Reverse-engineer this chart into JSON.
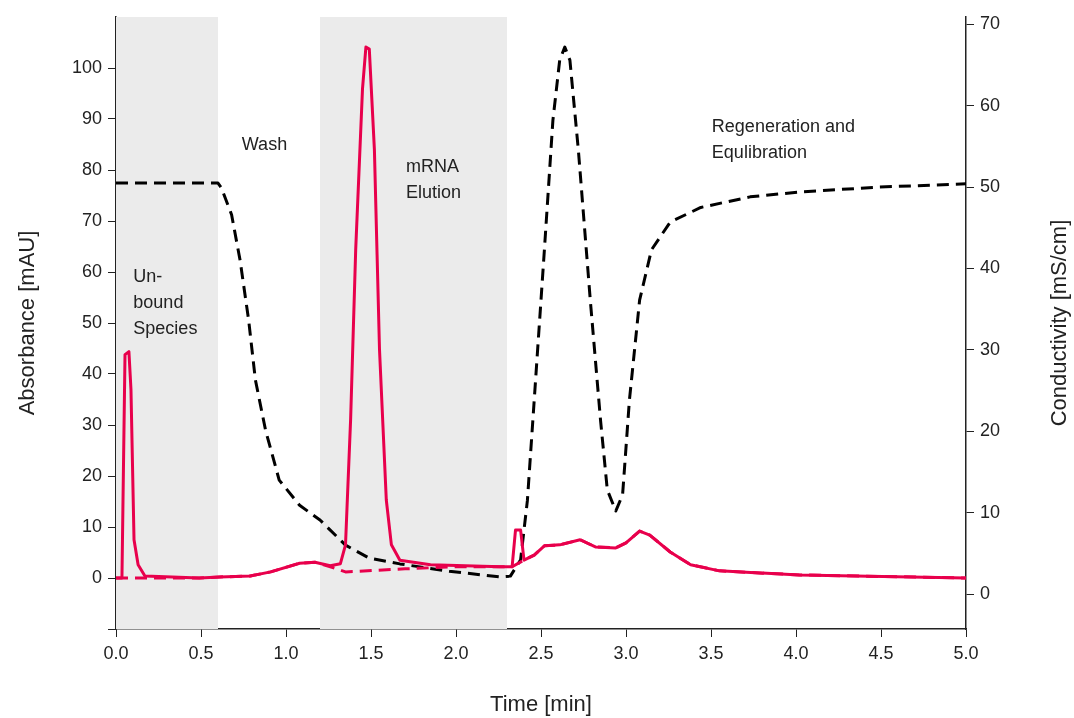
{
  "chart_data": {
    "type": "line",
    "xlabel": "Time [min]",
    "ylabel": "Absorbance [mAU]",
    "y2label": "Conductivity [mS/cm]",
    "xlim": [
      0,
      5
    ],
    "xticks": [
      {
        "value": 0,
        "label": "0.0"
      },
      0.5,
      {
        "value": 1,
        "label": "1.0"
      },
      1.5,
      {
        "value": 2,
        "label": "2.0"
      },
      2.5,
      {
        "value": 3,
        "label": "3.0"
      },
      3.5,
      {
        "value": 4,
        "label": "4.0"
      },
      4.5,
      {
        "value": 5,
        "label": "5.0"
      }
    ],
    "ylim": [
      -10,
      110
    ],
    "yticks": [
      {
        "value": -10,
        "label": null
      },
      0,
      10,
      20,
      30,
      40,
      50,
      60,
      70,
      80,
      90,
      100
    ],
    "y2lim": [
      -4.3,
      70.9
    ],
    "y2ticks": [
      0,
      10,
      20,
      30,
      40,
      50,
      60,
      70
    ],
    "grid": false,
    "legend": false,
    "marker": "none",
    "bands": [
      {
        "axis": "x",
        "from": 0,
        "to": 0.6,
        "color": "#ebebeb",
        "label": "Un-\nbound\nSpecies"
      },
      {
        "axis": "x",
        "from": 1.2,
        "to": 2.3,
        "color": "#ebebeb",
        "label": "mRNA\nElution"
      }
    ],
    "annotations": [
      "Wash",
      "Regeneration and\nEqulibration"
    ],
    "series": [
      {
        "color": "#e8004c",
        "line_style": "dashed",
        "x": [
          0,
          0.49,
          0.61,
          0.79,
          0.91,
          1.08,
          1.17,
          1.28,
          1.35,
          1.7,
          2.0,
          2.33,
          2.4,
          2.46,
          2.52,
          2.61,
          2.73,
          2.82,
          2.94,
          3.0,
          3.08,
          3.14,
          3.26,
          3.38,
          3.55,
          4.02,
          5.0
        ],
        "values": [
          0,
          0,
          0.2,
          0.4,
          1.2,
          2.9,
          3.1,
          2.0,
          1.2,
          1.8,
          2.2,
          2.2,
          3.5,
          4.5,
          6.3,
          6.5,
          7.5,
          6.1,
          5.9,
          6.9,
          9.2,
          8.4,
          5.1,
          2.6,
          1.4,
          0.6,
          0
        ]
      },
      {
        "color": "#e8004c",
        "line_style": "solid",
        "x": [
          0,
          0.035,
          0.053,
          0.076,
          0.088,
          0.106,
          0.13,
          0.17,
          0.49,
          0.61,
          0.79,
          0.91,
          1.08,
          1.17,
          1.26,
          1.32,
          1.35,
          1.38,
          1.41,
          1.45,
          1.47,
          1.49,
          1.52,
          1.55,
          1.59,
          1.62,
          1.67,
          1.85,
          2.26,
          2.33,
          2.35,
          2.38,
          2.4,
          2.46,
          2.52,
          2.61,
          2.73,
          2.82,
          2.94,
          3.0,
          3.08,
          3.14,
          3.26,
          3.38,
          3.55,
          4.02,
          5.0
        ],
        "values": [
          0,
          0,
          43.8,
          44.4,
          37,
          7.5,
          2.6,
          0.4,
          0,
          0.2,
          0.4,
          1.2,
          2.9,
          3.1,
          2.4,
          2.8,
          6.5,
          31,
          64.4,
          95.9,
          104.1,
          103.7,
          84,
          44.8,
          15.3,
          6.5,
          3.5,
          2.6,
          2.2,
          2.2,
          9.4,
          9.4,
          3.5,
          4.5,
          6.3,
          6.5,
          7.5,
          6.1,
          5.9,
          6.9,
          9.2,
          8.4,
          5.1,
          2.6,
          1.4,
          0.6,
          0
        ]
      },
      {
        "color": "#000000",
        "line_style": "dashed",
        "axis": "y2",
        "x": [
          0,
          0.6,
          0.62,
          0.68,
          0.73,
          0.78,
          0.82,
          0.88,
          0.96,
          1.08,
          1.2,
          1.35,
          1.49,
          1.67,
          1.96,
          2.26,
          2.32,
          2.38,
          2.42,
          2.46,
          2.52,
          2.57,
          2.61,
          2.64,
          2.67,
          2.72,
          2.79,
          2.85,
          2.89,
          2.94,
          2.98,
          3.02,
          3.08,
          3.15,
          3.26,
          3.44,
          3.73,
          4.02,
          4.49,
          5.0
        ],
        "values": [
          50.5,
          50.5,
          49.9,
          46.6,
          41,
          33.7,
          26.3,
          20.1,
          14,
          10.9,
          9.1,
          6.0,
          4.4,
          3.7,
          2.8,
          2.1,
          2.2,
          4.2,
          11.5,
          23.8,
          42.3,
          58.2,
          65.6,
          67.2,
          65.6,
          54.5,
          36.1,
          21.4,
          12.8,
          10.2,
          12.2,
          23.8,
          36.1,
          42.3,
          45.7,
          47.5,
          48.8,
          49.4,
          50.0,
          50.4
        ]
      }
    ]
  }
}
